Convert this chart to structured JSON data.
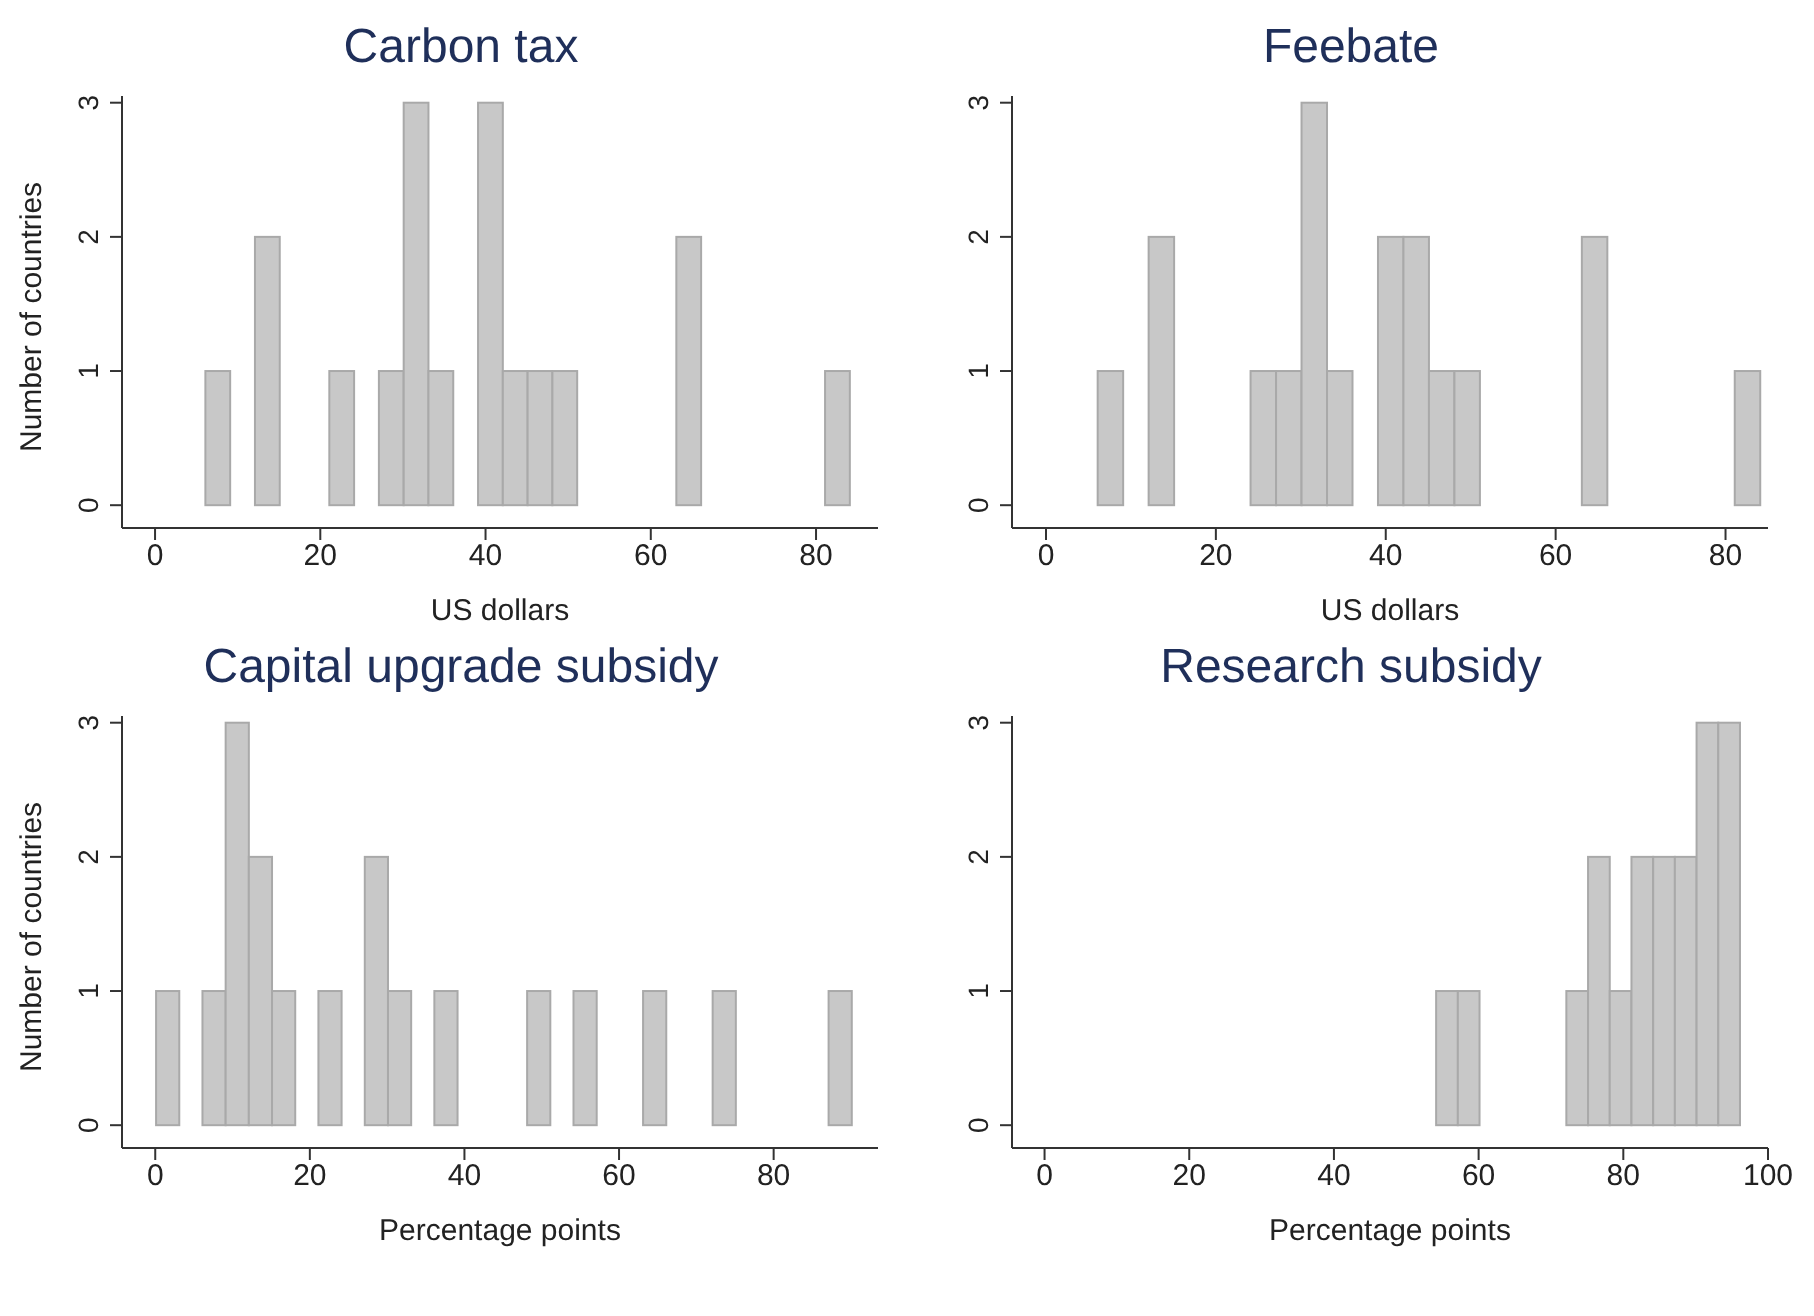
{
  "chart_data": [
    {
      "type": "histogram",
      "title": "Carbon tax",
      "xlabel": "US dollars",
      "ylabel": "Number of countries",
      "color": "#c8c8c8",
      "bins": [
        6,
        9,
        12,
        15,
        18,
        21,
        24,
        27,
        30,
        33,
        36,
        39,
        42,
        45,
        48,
        51,
        54,
        57,
        60,
        63,
        66,
        69,
        72,
        75,
        78,
        81,
        84
      ],
      "values": [
        1,
        0,
        2,
        0,
        0,
        1,
        0,
        1,
        3,
        1,
        0,
        3,
        1,
        1,
        1,
        0,
        0,
        0,
        0,
        2,
        0,
        0,
        0,
        0,
        0,
        1
      ],
      "xlim": [
        -4,
        87.5
      ],
      "xticks": [
        0,
        20,
        40,
        60,
        80
      ],
      "ylim": [
        -0.17,
        3.05
      ],
      "yticks": [
        0,
        1,
        2,
        3
      ],
      "grid": false
    },
    {
      "type": "histogram",
      "title": "Feebate",
      "xlabel": "US dollars",
      "color": "#c8c8c8",
      "bins": [
        6,
        9,
        12,
        15,
        18,
        21,
        24,
        27,
        30,
        33,
        36,
        39,
        42,
        45,
        48,
        51,
        54,
        57,
        60,
        63,
        66,
        69,
        72,
        75,
        78,
        81,
        84
      ],
      "values": [
        1,
        0,
        2,
        0,
        0,
        0,
        1,
        1,
        3,
        1,
        0,
        2,
        2,
        1,
        1,
        0,
        0,
        0,
        0,
        2,
        0,
        0,
        0,
        0,
        0,
        1
      ],
      "xlim": [
        -4,
        85
      ],
      "xticks": [
        0,
        20,
        40,
        60,
        80
      ],
      "ylim": [
        -0.17,
        3.05
      ],
      "yticks": [
        0,
        1,
        2,
        3
      ],
      "grid": false
    },
    {
      "type": "histogram",
      "title": "Capital upgrade subsidy",
      "xlabel": "Percentage points",
      "ylabel": "Number of countries",
      "color": "#c8c8c8",
      "bins": [
        0,
        3,
        6,
        9,
        12,
        15,
        18,
        21,
        24,
        27,
        30,
        33,
        36,
        39,
        42,
        45,
        48,
        51,
        54,
        57,
        60,
        63,
        66,
        69,
        72,
        75,
        78,
        81,
        84,
        87,
        90
      ],
      "values": [
        1,
        0,
        1,
        3,
        2,
        1,
        0,
        1,
        0,
        2,
        1,
        0,
        1,
        0,
        0,
        0,
        1,
        0,
        1,
        0,
        0,
        1,
        0,
        0,
        1,
        0,
        0,
        0,
        0,
        1
      ],
      "xlim": [
        -4.3,
        93.5
      ],
      "xticks": [
        0,
        20,
        40,
        60,
        80
      ],
      "ylim": [
        -0.17,
        3.05
      ],
      "yticks": [
        0,
        1,
        2,
        3
      ],
      "grid": false
    },
    {
      "type": "histogram",
      "title": "Research subsidy",
      "xlabel": "Percentage points",
      "color": "#c8c8c8",
      "bins": [
        54,
        57,
        60,
        63,
        66,
        69,
        72,
        75,
        78,
        81,
        84,
        87,
        90,
        93,
        96
      ],
      "values": [
        1,
        1,
        0,
        0,
        0,
        0,
        1,
        2,
        1,
        2,
        2,
        2,
        3,
        3
      ],
      "xlim": [
        -4.5,
        100
      ],
      "xticks": [
        0,
        20,
        40,
        60,
        80,
        100
      ],
      "ylim": [
        -0.17,
        3.05
      ],
      "yticks": [
        0,
        1,
        2,
        3
      ],
      "grid": false
    }
  ]
}
